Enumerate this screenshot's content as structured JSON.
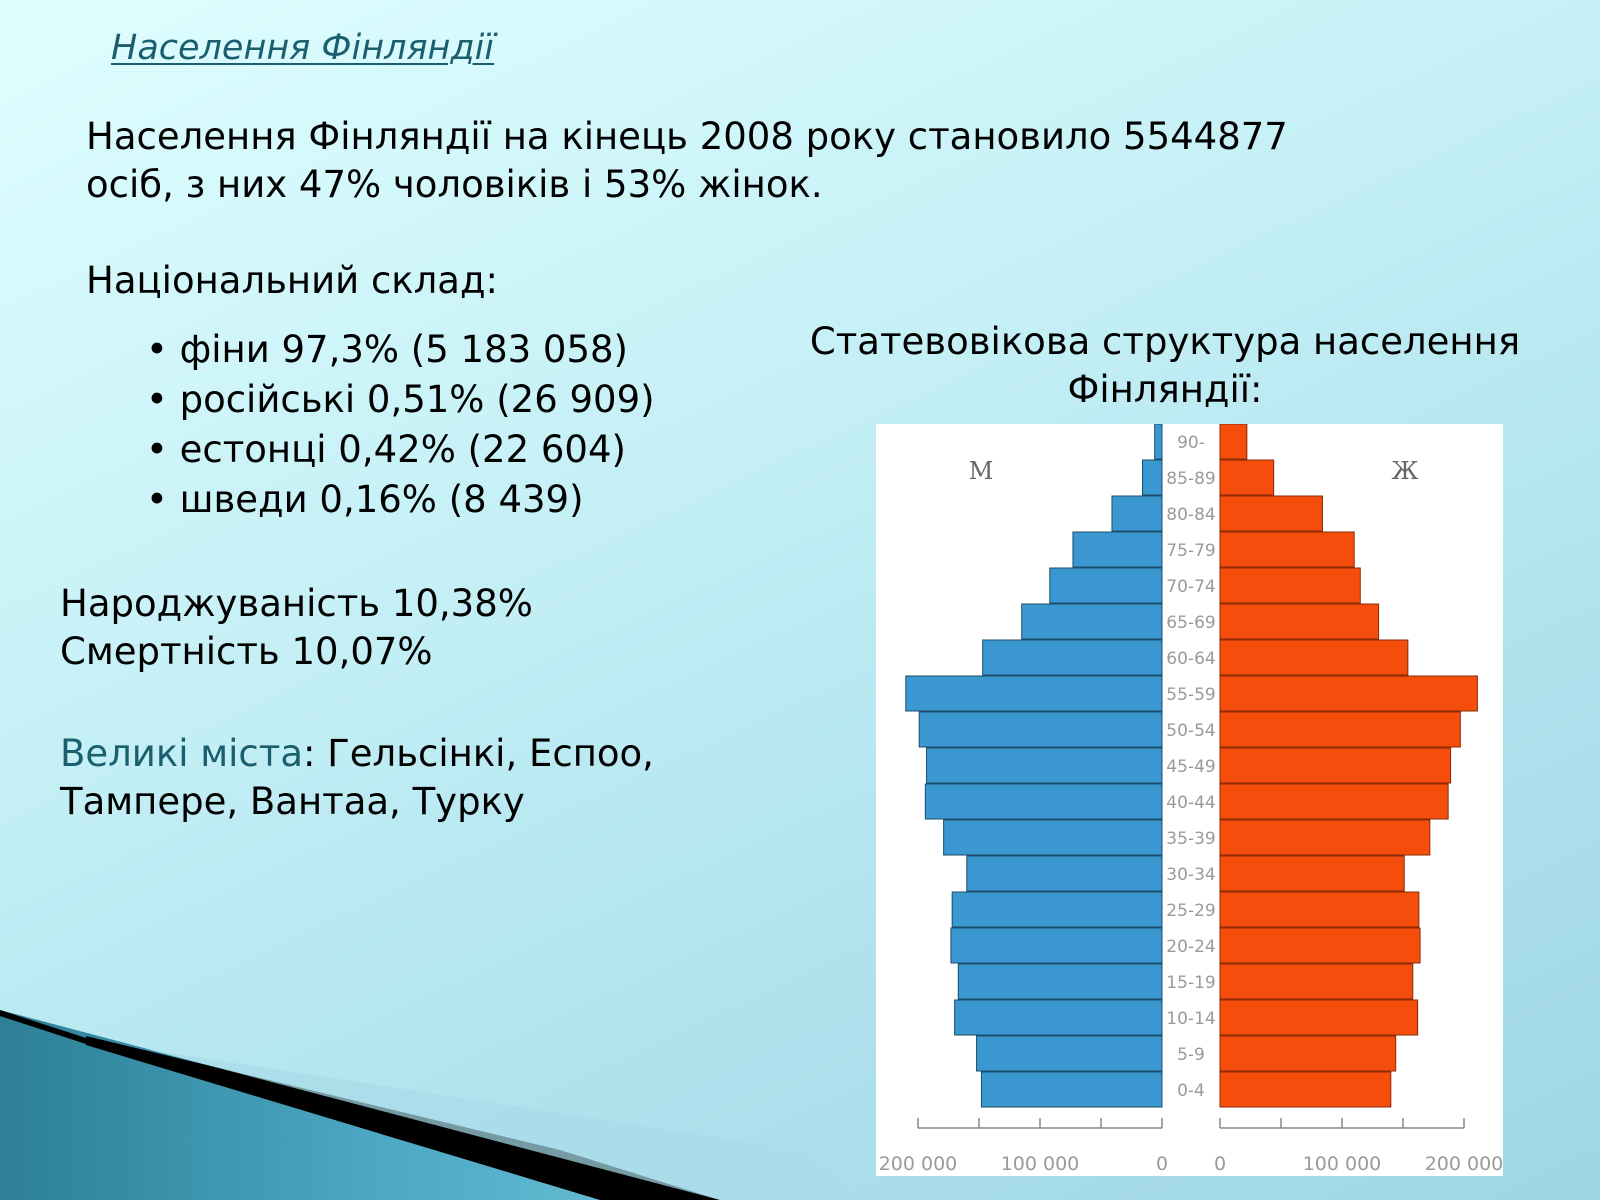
{
  "title": "Населення Фінляндії",
  "summary": "Населення Фінляндії на кінець 2008 року становило 5544877 осіб, з них 47% чоловіків і 53% жінок.",
  "nationality": {
    "heading": "Національний склад:",
    "items": [
      "фіни 97,3% (5 183 058)",
      "російські 0,51% (26 909)",
      "естонці 0,42% (22 604)",
      "шведи 0,16% (8 439)"
    ]
  },
  "rates": {
    "birth": "Народжуваність 10,38%",
    "death": "Смертність 10,07%"
  },
  "cities": {
    "label": "Великі міста",
    "list": ": Гельсінкі, Еспоо, Тампере, Вантаа, Турку"
  },
  "chart_title": "Статевовікова структура населення Фінляндії:",
  "chart_data": {
    "type": "bar",
    "orientation": "horizontal-pyramid",
    "categories": [
      "0-4",
      "5-9",
      "10-14",
      "15-19",
      "20-24",
      "25-29",
      "30-34",
      "35-39",
      "40-44",
      "45-49",
      "50-54",
      "55-59",
      "60-64",
      "65-69",
      "70-74",
      "75-79",
      "80-84",
      "85-89",
      "90-"
    ],
    "series": [
      {
        "name": "М",
        "values": [
          148000,
          152000,
          170000,
          167000,
          173000,
          172000,
          160000,
          179000,
          194000,
          193000,
          199000,
          210000,
          147000,
          115000,
          92000,
          73000,
          41000,
          16000,
          6000
        ]
      },
      {
        "name": "Ж",
        "values": [
          140000,
          144000,
          162000,
          158000,
          164000,
          163000,
          151000,
          172000,
          187000,
          189000,
          197000,
          211000,
          154000,
          130000,
          115000,
          110000,
          84000,
          44000,
          22000
        ]
      }
    ],
    "xticks_left": [
      "200 000",
      "100 000",
      "0"
    ],
    "xticks_right": [
      "0",
      "100 000",
      "200 000"
    ],
    "xlim": [
      0,
      200000
    ],
    "colors": {
      "male": "#3a97d0",
      "female": "#f54d0c"
    }
  }
}
